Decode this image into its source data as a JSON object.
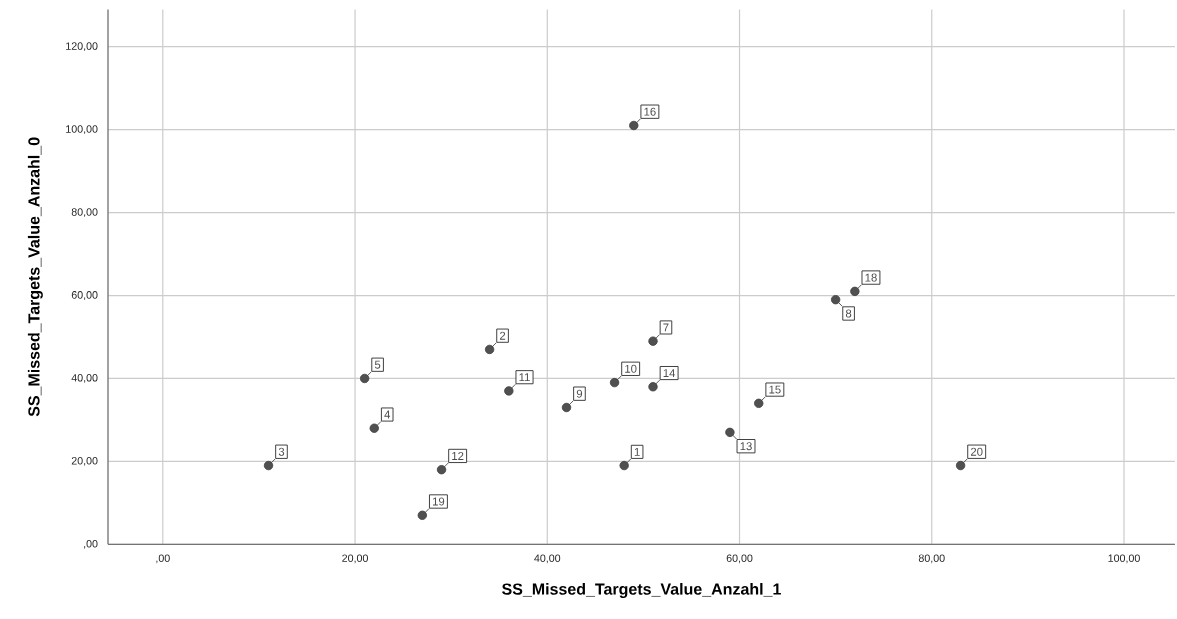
{
  "chart_data": {
    "type": "scatter",
    "xlabel": "SS_Missed_Targets_Value_Anzahl_1",
    "ylabel": "SS_Missed_Targets_Value_Anzahl_0",
    "x": [
      48,
      34,
      11,
      22,
      21,
      51,
      70,
      42,
      47,
      36,
      29,
      59,
      51,
      62,
      49,
      72,
      27,
      83
    ],
    "series": [
      {
        "color": "#505050",
        "values": [
          19,
          47,
          19,
          28,
          40,
          49,
          59,
          33,
          39,
          37,
          18,
          27,
          38,
          34,
          101,
          61,
          7,
          19
        ]
      }
    ],
    "xlim": [
      -5.7,
      105.3
    ],
    "ylim": [
      0,
      129
    ],
    "xticks": [
      {
        "value": 0,
        "label": ",00"
      },
      {
        "value": 20,
        "label": "20,00"
      },
      {
        "value": 40,
        "label": "40,00"
      },
      {
        "value": 60,
        "label": "60,00"
      },
      {
        "value": 80,
        "label": "80,00"
      },
      {
        "value": 100,
        "label": "100,00"
      }
    ],
    "yticks": [
      {
        "value": 0,
        "label": ",00"
      },
      {
        "value": 20,
        "label": "20,00"
      },
      {
        "value": 40,
        "label": "40,00"
      },
      {
        "value": 60,
        "label": "60,00"
      },
      {
        "value": 80,
        "label": "80,00"
      },
      {
        "value": 100,
        "label": "100,00"
      },
      {
        "value": 120,
        "label": "120,00"
      }
    ],
    "grid": true,
    "marker": "circle",
    "annotations": [
      {
        "text": "1",
        "x": 48,
        "y": 19
      },
      {
        "text": "2",
        "x": 34,
        "y": 47
      },
      {
        "text": "3",
        "x": 11,
        "y": 19
      },
      {
        "text": "4",
        "x": 22,
        "y": 28
      },
      {
        "text": "5",
        "x": 21,
        "y": 40
      },
      {
        "text": "7",
        "x": 51,
        "y": 49
      },
      {
        "text": "8",
        "x": 70,
        "y": 59
      },
      {
        "text": "9",
        "x": 42,
        "y": 33
      },
      {
        "text": "10",
        "x": 47,
        "y": 39
      },
      {
        "text": "11",
        "x": 36,
        "y": 37
      },
      {
        "text": "12",
        "x": 29,
        "y": 18
      },
      {
        "text": "13",
        "x": 59,
        "y": 27
      },
      {
        "text": "14",
        "x": 51,
        "y": 38
      },
      {
        "text": "15",
        "x": 62,
        "y": 34
      },
      {
        "text": "16",
        "x": 49,
        "y": 101
      },
      {
        "text": "18",
        "x": 72,
        "y": 61
      },
      {
        "text": "19",
        "x": 27,
        "y": 7
      },
      {
        "text": "20",
        "x": 83,
        "y": 19
      }
    ]
  }
}
